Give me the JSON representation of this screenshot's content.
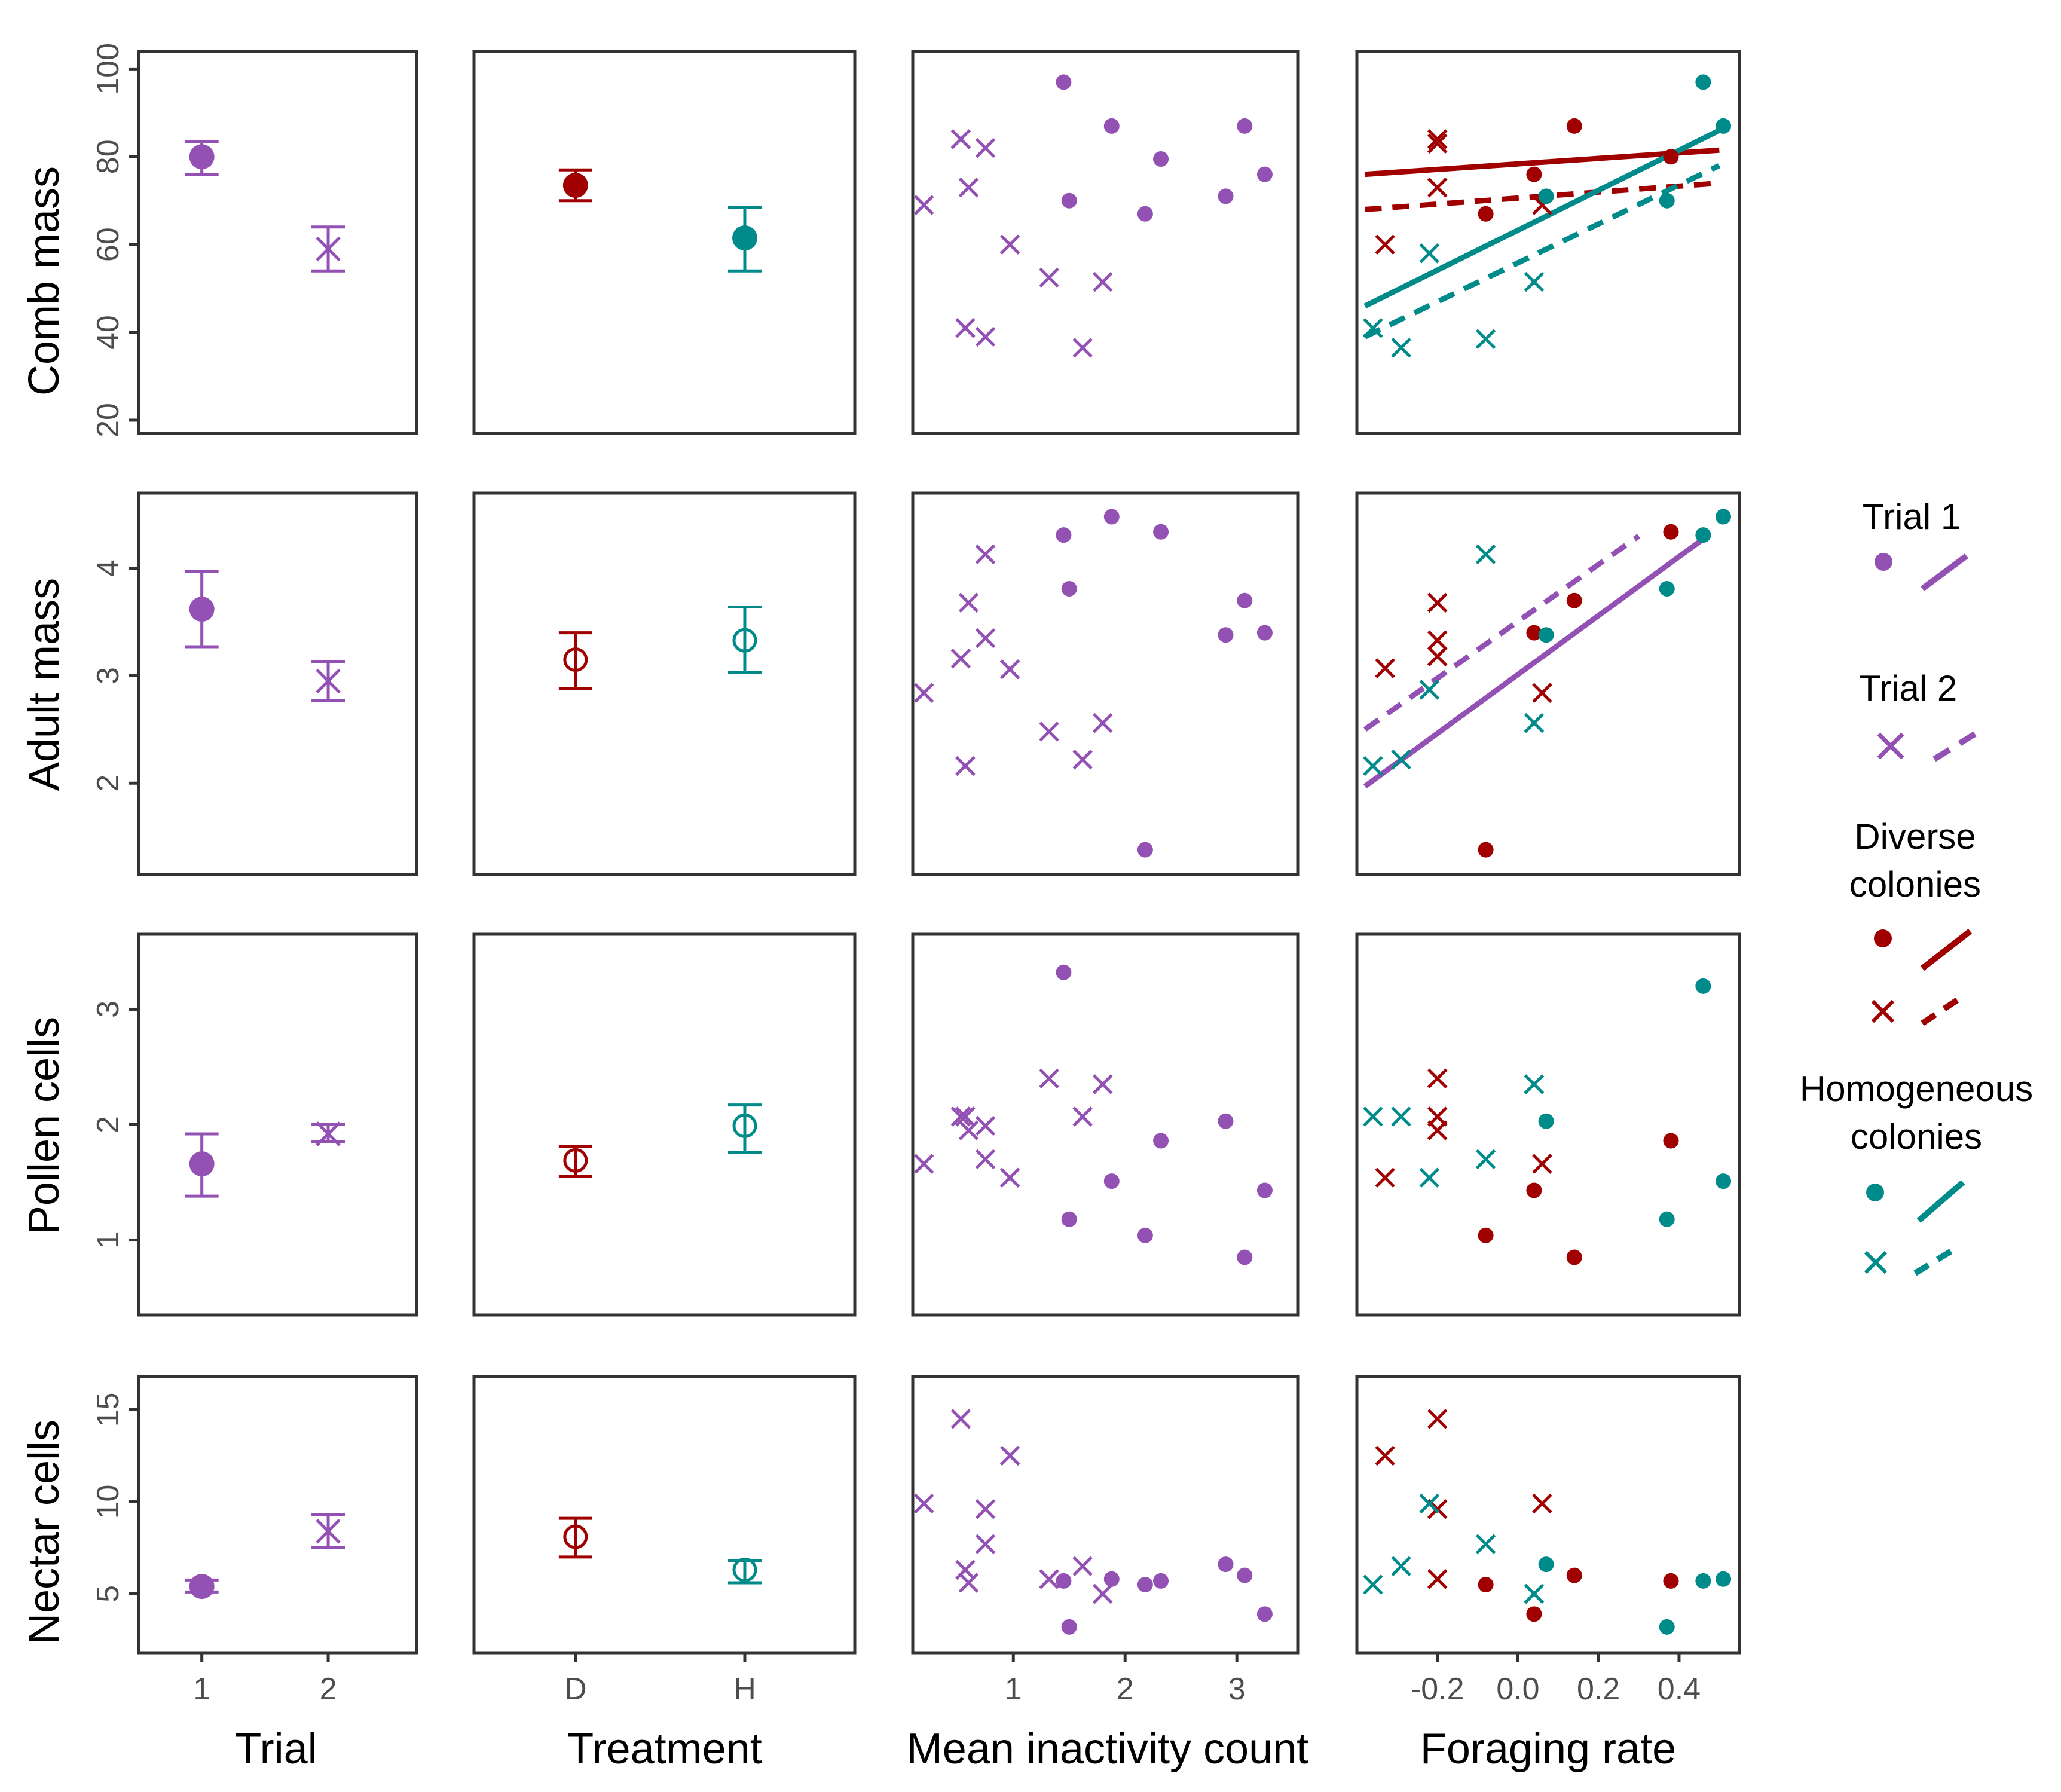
{
  "colors": {
    "trial": "#9351B4",
    "diverse": "#A00000",
    "homogeneous": "#008B8B",
    "frame": "#333333",
    "tick": "#4d4d4d"
  },
  "axis_labels": {
    "x": [
      "Trial",
      "Treatment",
      "Mean inactivity count",
      "Foraging rate"
    ],
    "y": [
      "Comb mass",
      "Adult mass",
      "Pollen cells",
      "Nectar cells"
    ]
  },
  "legend": {
    "trial1": "Trial 1",
    "trial2": "Trial 2",
    "diverse": [
      "Diverse",
      "colonies"
    ],
    "homogeneous": [
      "Homogeneous",
      "colonies"
    ]
  },
  "chart_data": [
    {
      "type": "scatter-matrix",
      "title": "",
      "rows": [
        {
          "name": "Comb mass",
          "ylim": [
            17,
            104
          ],
          "yticks": [
            20,
            40,
            60,
            80,
            100
          ],
          "ytick_labels": [
            "20",
            "40",
            "60",
            "80",
            "100"
          ]
        },
        {
          "name": "Adult mass",
          "ylim": [
            1.15,
            4.7
          ],
          "yticks": [
            2,
            3,
            4
          ],
          "ytick_labels": [
            "2",
            "3",
            "4"
          ]
        },
        {
          "name": "Pollen cells",
          "ylim": [
            0.35,
            3.65
          ],
          "yticks": [
            1,
            2,
            3
          ],
          "ytick_labels": [
            "1",
            "2",
            "3"
          ]
        },
        {
          "name": "Nectar cells",
          "ylim": [
            1.8,
            16.8
          ],
          "yticks": [
            5,
            10,
            15
          ],
          "ytick_labels": [
            "5",
            "10",
            "15"
          ]
        }
      ],
      "columns": [
        {
          "name": "Trial",
          "type": "categorical",
          "xlim": [
            0.5,
            2.7
          ],
          "categories": [
            1,
            2
          ],
          "xtick_labels": [
            "1",
            "2"
          ]
        },
        {
          "name": "Treatment",
          "type": "categorical",
          "xlim": [
            0.4,
            2.65
          ],
          "categories": [
            1,
            2
          ],
          "xtick_labels": [
            "D",
            "H"
          ]
        },
        {
          "name": "Mean inactivity count",
          "type": "numeric",
          "xlim": [
            0.1,
            3.55
          ],
          "xticks": [
            1,
            2,
            3
          ],
          "xtick_labels": [
            "1",
            "2",
            "3"
          ]
        },
        {
          "name": "Foraging rate",
          "type": "numeric",
          "xlim": [
            -0.4,
            0.55
          ],
          "xticks": [
            -0.2,
            0.0,
            0.2,
            0.4
          ],
          "xtick_labels": [
            "-0.2",
            "0.0",
            "0.2",
            "0.4"
          ]
        }
      ],
      "means": {
        "trial": [
          [
            {
              "x": 1,
              "mean": 80,
              "lo": 76,
              "hi": 83.5,
              "trial": 1
            },
            {
              "x": 2,
              "mean": 59,
              "lo": 54,
              "hi": 64,
              "trial": 2
            }
          ],
          [
            {
              "x": 1,
              "mean": 3.62,
              "lo": 3.27,
              "hi": 3.97,
              "trial": 1
            },
            {
              "x": 2,
              "mean": 2.95,
              "lo": 2.77,
              "hi": 3.13,
              "trial": 2
            }
          ],
          [
            {
              "x": 1,
              "mean": 1.66,
              "lo": 1.38,
              "hi": 1.92,
              "trial": 1
            },
            {
              "x": 2,
              "mean": 1.92,
              "lo": 1.85,
              "hi": 2.0,
              "trial": 2
            }
          ],
          [
            {
              "x": 1,
              "mean": 5.4,
              "lo": 5.1,
              "hi": 5.75,
              "trial": 1
            },
            {
              "x": 2,
              "mean": 8.4,
              "lo": 7.5,
              "hi": 9.3,
              "trial": 2
            }
          ]
        ],
        "treatment": [
          [
            {
              "x": 1,
              "mean": 73.5,
              "lo": 70,
              "hi": 77,
              "group": "D",
              "filled": true
            },
            {
              "x": 2,
              "mean": 61.5,
              "lo": 54,
              "hi": 68.5,
              "group": "H",
              "filled": true
            }
          ],
          [
            {
              "x": 1,
              "mean": 3.15,
              "lo": 2.88,
              "hi": 3.4,
              "group": "D",
              "filled": false
            },
            {
              "x": 2,
              "mean": 3.33,
              "lo": 3.03,
              "hi": 3.64,
              "group": "H",
              "filled": false
            }
          ],
          [
            {
              "x": 1,
              "mean": 1.69,
              "lo": 1.55,
              "hi": 1.81,
              "group": "D",
              "filled": false
            },
            {
              "x": 2,
              "mean": 1.99,
              "lo": 1.76,
              "hi": 2.17,
              "group": "H",
              "filled": false
            }
          ],
          [
            {
              "x": 1,
              "mean": 8.1,
              "lo": 7.0,
              "hi": 9.1,
              "group": "D",
              "filled": false
            },
            {
              "x": 2,
              "mean": 6.3,
              "lo": 5.6,
              "hi": 6.8,
              "group": "H",
              "filled": false
            }
          ]
        ]
      },
      "inactivity_points": [
        {
          "trial": 1,
          "x": [
            1.45,
            1.88,
            2.32,
            1.5,
            3.07,
            3.25,
            2.9,
            2.18
          ],
          "y": [
            [
              97,
              87,
              79.5,
              70,
              87,
              76,
              71,
              67
            ],
            [
              4.31,
              4.48,
              4.34,
              3.81,
              3.7,
              3.4,
              3.38,
              1.38
            ],
            [
              3.32,
              1.51,
              1.86,
              1.18,
              0.85,
              1.43,
              2.03,
              1.04
            ],
            [
              5.7,
              5.8,
              5.7,
              3.2,
              6.0,
              3.9,
              6.6,
              5.5
            ]
          ]
        },
        {
          "trial": 2,
          "x": [
            0.2,
            0.53,
            0.6,
            0.75,
            0.97,
            1.32,
            1.8,
            1.62,
            0.57,
            0.75
          ],
          "y": [
            [
              69,
              84,
              73,
              82,
              60,
              52.5,
              51.5,
              36.5,
              41,
              39
            ],
            [
              2.84,
              3.16,
              3.68,
              4.13,
              3.06,
              2.48,
              2.56,
              2.22,
              2.16,
              3.35
            ],
            [
              1.66,
              2.07,
              1.95,
              1.99,
              1.54,
              2.4,
              2.35,
              2.07,
              2.07,
              1.7
            ],
            [
              9.9,
              14.5,
              5.6,
              9.6,
              12.5,
              5.8,
              5.0,
              6.5,
              6.3,
              7.7
            ]
          ]
        }
      ],
      "foraging_points": [
        {
          "group": "D",
          "trial": 1,
          "x": [
            -0.08,
            0.04,
            0.14,
            0.38
          ],
          "y": [
            [
              67,
              76,
              87,
              80
            ],
            [
              1.38,
              3.4,
              3.7,
              4.34
            ],
            [
              1.04,
              1.43,
              0.85,
              1.86
            ],
            [
              5.5,
              3.9,
              6.0,
              5.7
            ]
          ]
        },
        {
          "group": "D",
          "trial": 2,
          "x": [
            -0.33,
            -0.2,
            -0.2,
            -0.2,
            0.06
          ],
          "y": [
            [
              60,
              84,
              83,
              73,
              69
            ],
            [
              3.07,
              3.68,
              3.33,
              3.18,
              2.84
            ],
            [
              1.54,
              2.4,
              2.07,
              1.95,
              1.66
            ],
            [
              12.5,
              14.5,
              9.6,
              5.8,
              9.9
            ]
          ]
        },
        {
          "group": "H",
          "trial": 1,
          "x": [
            0.07,
            0.37,
            0.46,
            0.51
          ],
          "y": [
            [
              71,
              70,
              97,
              87
            ],
            [
              3.38,
              3.81,
              4.31,
              4.48
            ],
            [
              2.03,
              1.18,
              3.2,
              1.51
            ],
            [
              6.6,
              3.2,
              5.7,
              5.8
            ]
          ]
        },
        {
          "group": "H",
          "trial": 2,
          "x": [
            -0.36,
            -0.29,
            -0.22,
            -0.08,
            0.04
          ],
          "y": [
            [
              41,
              36.5,
              58,
              38.5,
              51.5
            ],
            [
              2.16,
              2.22,
              2.87,
              4.13,
              2.56
            ],
            [
              2.07,
              2.07,
              1.54,
              1.7,
              2.35
            ],
            [
              5.5,
              6.5,
              9.9,
              7.7,
              5.0
            ]
          ]
        }
      ],
      "fit_lines": [
        {
          "row": 0,
          "group": "D",
          "trial": 1,
          "dash": false,
          "x": [
            -0.38,
            0.5
          ],
          "y": [
            76,
            81.5
          ]
        },
        {
          "row": 0,
          "group": "D",
          "trial": 2,
          "dash": true,
          "x": [
            -0.38,
            0.5
          ],
          "y": [
            68,
            74
          ]
        },
        {
          "row": 0,
          "group": "H",
          "trial": 1,
          "dash": false,
          "x": [
            -0.38,
            0.5
          ],
          "y": [
            46,
            86
          ]
        },
        {
          "row": 0,
          "group": "H",
          "trial": 2,
          "dash": true,
          "x": [
            -0.38,
            0.5
          ],
          "y": [
            39,
            78
          ]
        },
        {
          "row": 1,
          "group": "T",
          "trial": 1,
          "dash": false,
          "x": [
            -0.38,
            0.47
          ],
          "y": [
            1.97,
            4.3
          ]
        },
        {
          "row": 1,
          "group": "T",
          "trial": 2,
          "dash": true,
          "x": [
            -0.38,
            0.3
          ],
          "y": [
            2.5,
            4.3
          ]
        }
      ]
    }
  ]
}
